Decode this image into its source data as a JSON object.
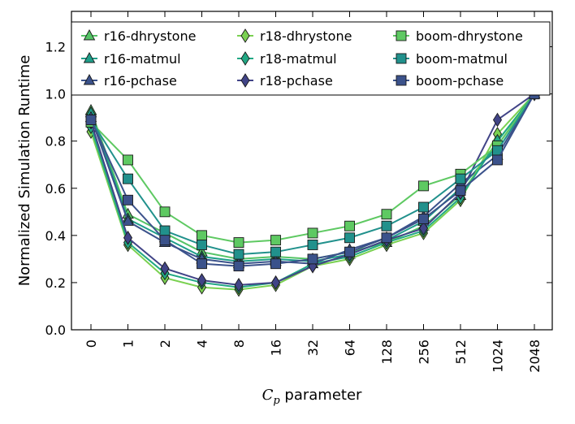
{
  "chart_data": {
    "type": "line",
    "xlabel_var": "C",
    "xlabel_sub": "p",
    "xlabel_rest": " parameter",
    "ylabel": "Normalized Simulation Runtime",
    "categories": [
      "0",
      "1",
      "2",
      "4",
      "8",
      "16",
      "32",
      "64",
      "128",
      "256",
      "512",
      "1024",
      "2048"
    ],
    "yticks": [
      "0.0",
      "0.2",
      "0.4",
      "0.6",
      "0.8",
      "1.0",
      "1.2"
    ],
    "ylim": [
      0.0,
      1.35
    ],
    "grid": false,
    "legend_position": "top",
    "series": [
      {
        "name": "r16-dhrystone",
        "marker": "triangle",
        "color": "#55c466",
        "values": [
          0.93,
          0.49,
          0.41,
          0.33,
          0.3,
          0.31,
          0.3,
          0.33,
          0.37,
          0.44,
          0.57,
          0.8,
          1.0
        ]
      },
      {
        "name": "r16-matmul",
        "marker": "triangle",
        "color": "#1f9e89",
        "values": [
          0.92,
          0.47,
          0.39,
          0.31,
          0.29,
          0.3,
          0.29,
          0.32,
          0.38,
          0.46,
          0.6,
          0.78,
          1.0
        ]
      },
      {
        "name": "r16-pchase",
        "marker": "triangle",
        "color": "#3b528b",
        "values": [
          0.9,
          0.46,
          0.37,
          0.3,
          0.28,
          0.29,
          0.28,
          0.34,
          0.39,
          0.48,
          0.62,
          0.74,
          1.0
        ]
      },
      {
        "name": "r18-dhrystone",
        "marker": "diamond",
        "color": "#7ad151",
        "values": [
          0.84,
          0.36,
          0.22,
          0.18,
          0.17,
          0.19,
          0.27,
          0.3,
          0.36,
          0.41,
          0.55,
          0.83,
          1.0
        ]
      },
      {
        "name": "r18-matmul",
        "marker": "diamond",
        "color": "#22a884",
        "values": [
          0.86,
          0.37,
          0.24,
          0.2,
          0.18,
          0.2,
          0.28,
          0.31,
          0.37,
          0.42,
          0.56,
          0.8,
          1.0
        ]
      },
      {
        "name": "r18-pchase",
        "marker": "diamond",
        "color": "#414487",
        "values": [
          0.88,
          0.39,
          0.26,
          0.21,
          0.19,
          0.2,
          0.27,
          0.32,
          0.38,
          0.43,
          0.58,
          0.89,
          1.0
        ]
      },
      {
        "name": "boom-dhrystone",
        "marker": "square",
        "color": "#5ec962",
        "values": [
          0.88,
          0.72,
          0.5,
          0.4,
          0.37,
          0.38,
          0.41,
          0.44,
          0.49,
          0.61,
          0.66,
          0.78,
          1.0
        ]
      },
      {
        "name": "boom-matmul",
        "marker": "square",
        "color": "#21918c",
        "values": [
          0.89,
          0.64,
          0.42,
          0.36,
          0.32,
          0.33,
          0.36,
          0.39,
          0.44,
          0.52,
          0.64,
          0.76,
          1.0
        ]
      },
      {
        "name": "boom-pchase",
        "marker": "square",
        "color": "#3b528b",
        "values": [
          0.89,
          0.55,
          0.38,
          0.28,
          0.27,
          0.28,
          0.3,
          0.33,
          0.39,
          0.47,
          0.59,
          0.72,
          1.0
        ]
      }
    ]
  }
}
